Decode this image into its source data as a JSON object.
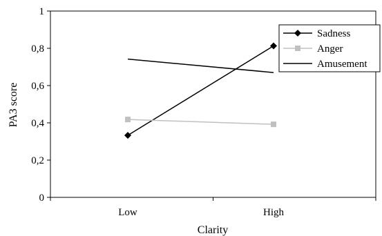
{
  "chart_data": {
    "type": "line",
    "categories": [
      "Low",
      "High"
    ],
    "series": [
      {
        "name": "Sadness",
        "values": [
          0.333,
          0.813
        ],
        "color": "#000000",
        "marker": "diamond"
      },
      {
        "name": "Anger",
        "values": [
          0.418,
          0.392
        ],
        "color": "#c0c0c0",
        "marker": "square"
      },
      {
        "name": "Amusement",
        "values": [
          0.742,
          0.67
        ],
        "color": "#000000",
        "marker": "none"
      }
    ],
    "xlabel": "Clarity",
    "ylabel": "PA3 score",
    "ylim": [
      0,
      1
    ],
    "yticks": [
      "0",
      "0,2",
      "0,4",
      "0,6",
      "0,8",
      "1"
    ],
    "grid": false,
    "legend_position": "top-right"
  }
}
